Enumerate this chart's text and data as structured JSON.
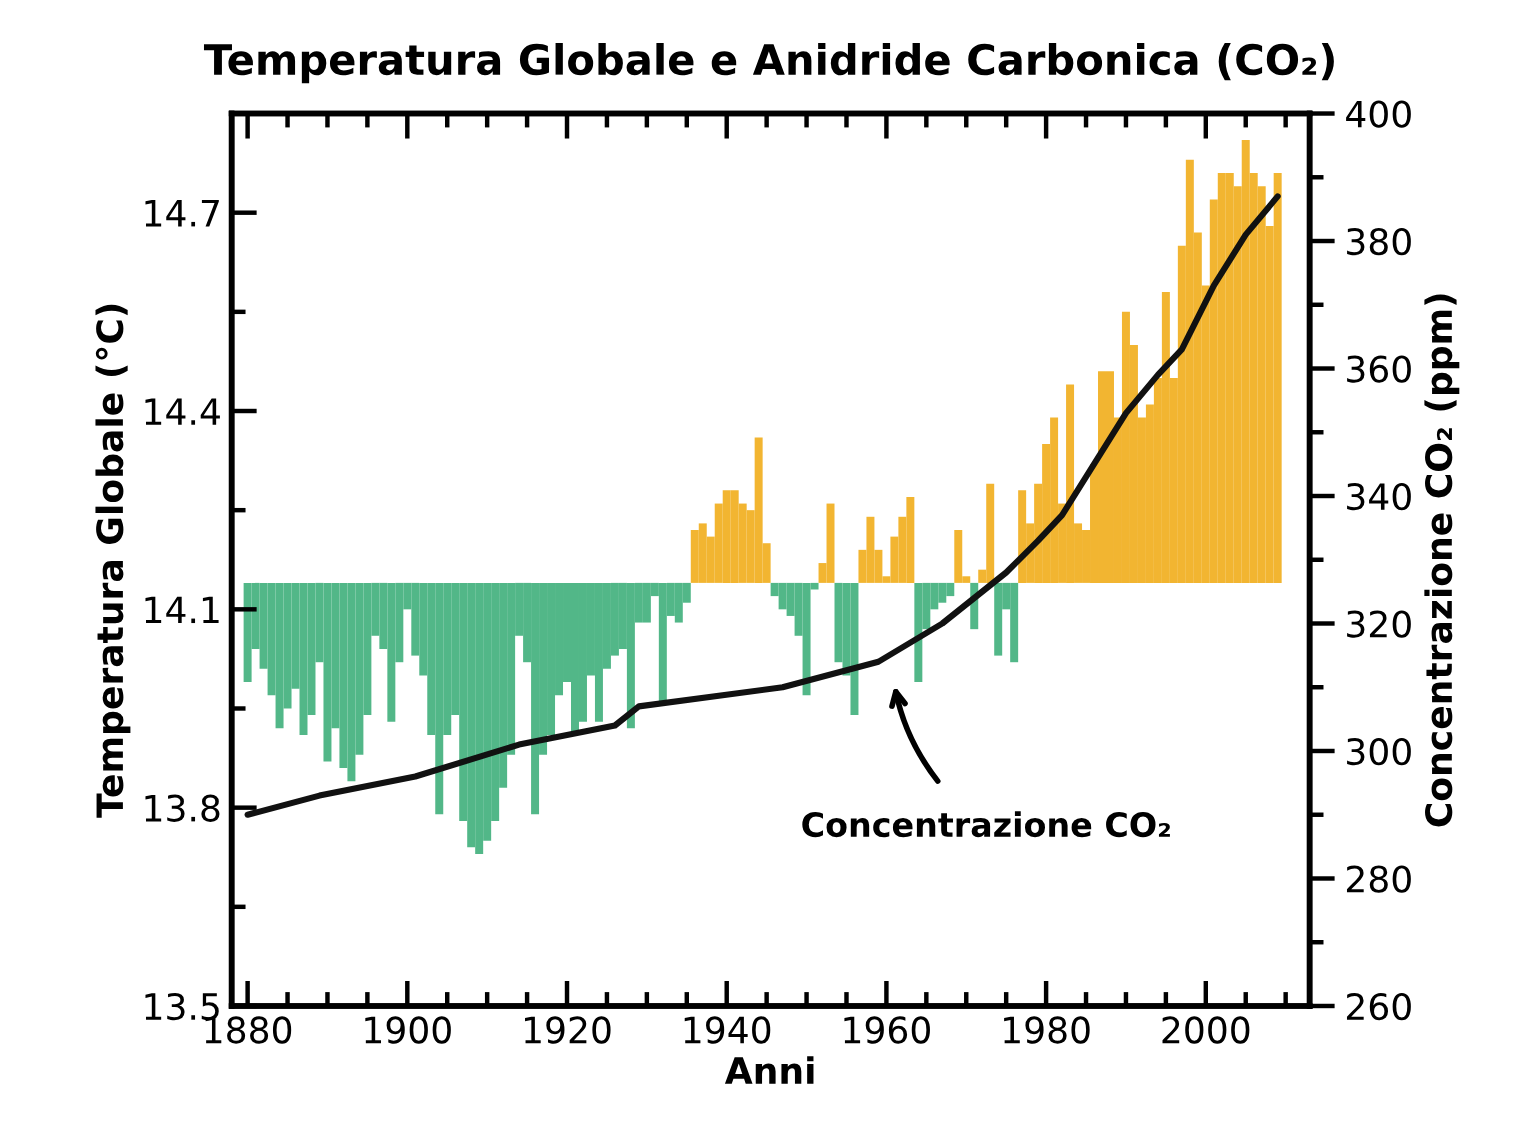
{
  "chart_data": {
    "type": "bar",
    "title": "Temperatura Globale e Anidride Carbonica (CO₂)",
    "xlabel": "Anni",
    "ylabel": "Temperatura Globale (°C)",
    "y2label": "Concentrazione CO₂ (ppm)",
    "xlim": [
      1878,
      2013
    ],
    "xticks": [
      1880,
      {
        "value": 1885,
        "label": null
      },
      {
        "value": 1890,
        "label": null
      },
      {
        "value": 1895,
        "label": null
      },
      1900,
      {
        "value": 1905,
        "label": null
      },
      {
        "value": 1910,
        "label": null
      },
      {
        "value": 1915,
        "label": null
      },
      1920,
      {
        "value": 1925,
        "label": null
      },
      {
        "value": 1930,
        "label": null
      },
      {
        "value": 1935,
        "label": null
      },
      1940,
      {
        "value": 1945,
        "label": null
      },
      {
        "value": 1950,
        "label": null
      },
      {
        "value": 1955,
        "label": null
      },
      1960,
      {
        "value": 1965,
        "label": null
      },
      {
        "value": 1970,
        "label": null
      },
      {
        "value": 1975,
        "label": null
      },
      1980,
      {
        "value": 1985,
        "label": null
      },
      {
        "value": 1990,
        "label": null
      },
      {
        "value": 1995,
        "label": null
      },
      2000,
      {
        "value": 2005,
        "label": null
      },
      {
        "value": 2010,
        "label": null
      }
    ],
    "ylim": [
      13.5,
      14.85
    ],
    "yticks": [
      13.5,
      {
        "value": 13.65,
        "label": null
      },
      13.8,
      {
        "value": 13.95,
        "label": null
      },
      14.1,
      {
        "value": 14.25,
        "label": null
      },
      14.4,
      {
        "value": 14.55,
        "label": null
      },
      14.7
    ],
    "y2lim": [
      260,
      400
    ],
    "y2ticks": [
      260,
      {
        "value": 270,
        "label": null
      },
      280,
      {
        "value": 290,
        "label": null
      },
      300,
      {
        "value": 310,
        "label": null
      },
      320,
      {
        "value": 330,
        "label": null
      },
      340,
      {
        "value": 350,
        "label": null
      },
      360,
      {
        "value": 370,
        "label": null
      },
      380,
      {
        "value": 390,
        "label": null
      },
      400
    ],
    "grid": false,
    "legend": false,
    "annotations": [
      "Concentrazione CO₂"
    ],
    "series": [
      {
        "x": [
          1880,
          1881,
          1882,
          1883,
          1884,
          1885,
          1886,
          1887,
          1888,
          1889,
          1890,
          1891,
          1892,
          1893,
          1894,
          1895,
          1896,
          1897,
          1898,
          1899,
          1900,
          1901,
          1902,
          1903,
          1904,
          1905,
          1906,
          1907,
          1908,
          1909,
          1910,
          1911,
          1912,
          1913,
          1914,
          1915,
          1916,
          1917,
          1918,
          1919,
          1920,
          1921,
          1922,
          1923,
          1924,
          1925,
          1926,
          1927,
          1928,
          1929,
          1930,
          1931,
          1932,
          1933,
          1934,
          1935,
          1936,
          1937,
          1938,
          1939,
          1940,
          1941,
          1942,
          1943,
          1944,
          1945,
          1946,
          1947,
          1948,
          1949,
          1950,
          1951,
          1952,
          1953,
          1954,
          1955,
          1956,
          1957,
          1958,
          1959,
          1960,
          1961,
          1962,
          1963,
          1964,
          1965,
          1966,
          1967,
          1968,
          1969,
          1970,
          1971,
          1972,
          1973,
          1974,
          1975,
          1976,
          1977,
          1978,
          1979,
          1980,
          1981,
          1982,
          1983,
          1984,
          1985,
          1986,
          1987,
          1988,
          1989,
          1990,
          1991,
          1992,
          1993,
          1994,
          1995,
          1996,
          1997,
          1998,
          1999,
          2000,
          2001,
          2002,
          2003,
          2004,
          2005,
          2006,
          2007,
          2008,
          2009
        ],
        "values": [
          -0.15,
          -0.1,
          -0.13,
          -0.17,
          -0.22,
          -0.19,
          -0.16,
          -0.23,
          -0.2,
          -0.12,
          -0.27,
          -0.22,
          -0.28,
          -0.3,
          -0.26,
          -0.2,
          -0.08,
          -0.1,
          -0.21,
          -0.12,
          -0.04,
          -0.11,
          -0.14,
          -0.23,
          -0.35,
          -0.23,
          -0.2,
          -0.36,
          -0.4,
          -0.41,
          -0.39,
          -0.36,
          -0.31,
          -0.26,
          -0.08,
          -0.12,
          -0.35,
          -0.26,
          -0.23,
          -0.17,
          -0.15,
          -0.23,
          -0.21,
          -0.14,
          -0.21,
          -0.13,
          -0.11,
          -0.1,
          -0.22,
          -0.06,
          -0.06,
          -0.02,
          -0.18,
          -0.05,
          -0.06,
          -0.03,
          0.08,
          0.09,
          0.07,
          0.12,
          0.14,
          0.14,
          0.12,
          0.11,
          0.22,
          0.06,
          -0.02,
          -0.04,
          -0.05,
          -0.08,
          -0.17,
          -0.01,
          0.03,
          0.12,
          -0.12,
          -0.14,
          -0.2,
          0.05,
          0.1,
          0.05,
          0.01,
          0.07,
          0.1,
          0.13,
          -0.15,
          -0.07,
          -0.04,
          -0.03,
          -0.02,
          0.08,
          0.01,
          -0.07,
          0.02,
          0.15,
          -0.11,
          -0.04,
          -0.12,
          0.14,
          0.09,
          0.15,
          0.21,
          0.25,
          0.12,
          0.3,
          0.09,
          0.08,
          0.18,
          0.32,
          0.32,
          0.25,
          0.41,
          0.36,
          0.25,
          0.27,
          0.31,
          0.44,
          0.31,
          0.51,
          0.64,
          0.53,
          0.45,
          0.58,
          0.62,
          0.62,
          0.6,
          0.67,
          0.62,
          0.6,
          0.54,
          0.62
        ],
        "base": [
          14.14,
          14.14,
          14.14,
          14.14,
          14.14,
          14.14,
          14.14,
          14.14,
          14.14,
          14.14,
          14.14,
          14.14,
          14.14,
          14.14,
          14.14,
          14.14,
          14.14,
          14.14,
          14.14,
          14.14,
          14.14,
          14.14,
          14.14,
          14.14,
          14.14,
          14.14,
          14.14,
          14.14,
          14.14,
          14.14,
          14.14,
          14.14,
          14.14,
          14.14,
          14.14,
          14.14,
          14.14,
          14.14,
          14.14,
          14.14,
          14.14,
          14.14,
          14.14,
          14.14,
          14.14,
          14.14,
          14.14,
          14.14,
          14.14,
          14.14,
          14.14,
          14.14,
          14.14,
          14.14,
          14.14,
          14.14,
          14.14,
          14.14,
          14.14,
          14.14,
          14.14,
          14.14,
          14.14,
          14.14,
          14.14,
          14.14,
          14.14,
          14.14,
          14.14,
          14.14,
          14.14,
          14.14,
          14.14,
          14.14,
          14.14,
          14.14,
          14.14,
          14.14,
          14.14,
          14.14,
          14.14,
          14.14,
          14.14,
          14.14,
          14.14,
          14.14,
          14.14,
          14.14,
          14.14,
          14.14,
          14.14,
          14.14,
          14.14,
          14.14,
          14.14,
          14.14,
          14.14,
          14.14,
          14.14,
          14.14,
          14.14,
          14.14,
          14.14,
          14.14,
          14.14,
          14.14,
          14.14,
          14.14,
          14.14,
          14.14,
          14.14,
          14.14,
          14.14,
          14.14,
          14.14,
          14.14,
          14.14,
          14.14,
          14.14,
          14.14,
          14.14,
          14.14,
          14.14,
          14.14,
          14.14,
          14.14,
          14.14,
          14.14,
          14.14,
          14.14
        ],
        "colors": [
          "#52b788",
          "#52b788",
          "#52b788",
          "#52b788",
          "#52b788",
          "#52b788",
          "#52b788",
          "#52b788",
          "#52b788",
          "#52b788",
          "#52b788",
          "#52b788",
          "#52b788",
          "#52b788",
          "#52b788",
          "#52b788",
          "#52b788",
          "#52b788",
          "#52b788",
          "#52b788",
          "#52b788",
          "#52b788",
          "#52b788",
          "#52b788",
          "#52b788",
          "#52b788",
          "#52b788",
          "#52b788",
          "#52b788",
          "#52b788",
          "#52b788",
          "#52b788",
          "#52b788",
          "#52b788",
          "#52b788",
          "#52b788",
          "#52b788",
          "#52b788",
          "#52b788",
          "#52b788",
          "#52b788",
          "#52b788",
          "#52b788",
          "#52b788",
          "#52b788",
          "#52b788",
          "#52b788",
          "#52b788",
          "#52b788",
          "#52b788",
          "#52b788",
          "#52b788",
          "#52b788",
          "#52b788",
          "#52b788",
          "#52b788",
          "#f2b531",
          "#f2b531",
          "#f2b531",
          "#f2b531",
          "#f2b531",
          "#f2b531",
          "#f2b531",
          "#f2b531",
          "#f2b531",
          "#f2b531",
          "#52b788",
          "#52b788",
          "#52b788",
          "#52b788",
          "#52b788",
          "#52b788",
          "#f2b531",
          "#f2b531",
          "#52b788",
          "#52b788",
          "#52b788",
          "#f2b531",
          "#f2b531",
          "#f2b531",
          "#f2b531",
          "#f2b531",
          "#f2b531",
          "#f2b531",
          "#52b788",
          "#52b788",
          "#52b788",
          "#52b788",
          "#52b788",
          "#f2b531",
          "#f2b531",
          "#52b788",
          "#f2b531",
          "#f2b531",
          "#52b788",
          "#52b788",
          "#52b788",
          "#f2b531",
          "#f2b531",
          "#f2b531",
          "#f2b531",
          "#f2b531",
          "#f2b531",
          "#f2b531",
          "#f2b531",
          "#f2b531",
          "#f2b531",
          "#f2b531",
          "#f2b531",
          "#f2b531",
          "#f2b531",
          "#f2b531",
          "#f2b531",
          "#f2b531",
          "#f2b531",
          "#f2b531",
          "#f2b531",
          "#f2b531",
          "#f2b531",
          "#f2b531",
          "#f2b531",
          "#f2b531",
          "#f2b531",
          "#f2b531",
          "#f2b531",
          "#f2b531",
          "#f2b531",
          "#f2b531",
          "#f2b531",
          "#f2b531"
        ]
      },
      {
        "type": "line",
        "axis": "y2",
        "color": "#111111",
        "x": [
          1880,
          1889,
          1901,
          1914,
          1926,
          1929,
          1947,
          1959,
          1967,
          1975,
          1979,
          1982,
          1986,
          1990,
          1994,
          1997,
          2001,
          2005,
          2009
        ],
        "values": [
          290,
          293,
          296,
          301,
          304,
          307,
          310,
          314,
          320,
          328,
          333,
          337,
          345,
          353,
          359,
          363,
          373,
          381,
          387
        ]
      }
    ]
  }
}
